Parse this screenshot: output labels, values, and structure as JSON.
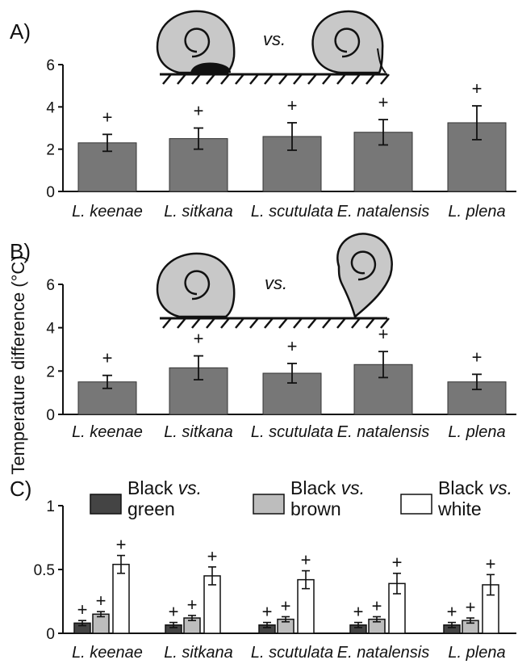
{
  "ylabel": "Temperature difference (°C)",
  "categories": [
    "L. keenae",
    "L. sitkana",
    "L. scutulata",
    "E. natalensis",
    "L. plena"
  ],
  "illustration_label": "vs.",
  "sig_marker": "+",
  "colors": {
    "bar_dark": "#777777",
    "snail_shell": "#c8c8c8",
    "snail_foot": "#111111",
    "green": "#444444",
    "brown": "#bdbdbd",
    "white": "#ffffff"
  },
  "chart_data": [
    {
      "type": "bar",
      "panel_label": "A)",
      "categories": [
        "L. keenae",
        "L. sitkana",
        "L. scutulata",
        "E. natalensis",
        "L. plena"
      ],
      "values": [
        2.3,
        2.5,
        2.6,
        2.8,
        3.25
      ],
      "errors": [
        0.4,
        0.5,
        0.65,
        0.6,
        0.8
      ],
      "significant": [
        true,
        true,
        true,
        true,
        true
      ],
      "ylim": [
        0,
        6
      ],
      "yticks": [
        "0",
        "2",
        "4",
        "6"
      ],
      "xlabel": "",
      "ylabel": ""
    },
    {
      "type": "bar",
      "panel_label": "B)",
      "categories": [
        "L. keenae",
        "L. sitkana",
        "L. scutulata",
        "E. natalensis",
        "L. plena"
      ],
      "values": [
        1.5,
        2.15,
        1.9,
        2.3,
        1.5
      ],
      "errors": [
        0.3,
        0.55,
        0.45,
        0.6,
        0.35
      ],
      "significant": [
        true,
        true,
        true,
        true,
        true
      ],
      "ylim": [
        0,
        6
      ],
      "yticks": [
        "0",
        "2",
        "4",
        "6"
      ],
      "xlabel": "",
      "ylabel": ""
    },
    {
      "type": "bar",
      "panel_label": "C)",
      "categories": [
        "L. keenae",
        "L. sitkana",
        "L. scutulata",
        "E. natalensis",
        "L. plena"
      ],
      "series": [
        {
          "name": "Black vs. green",
          "legend": [
            "Black ",
            "vs.",
            "green"
          ],
          "color": "#444444",
          "values": [
            0.08,
            0.065,
            0.065,
            0.065,
            0.065
          ],
          "errors": [
            0.02,
            0.02,
            0.02,
            0.02,
            0.02
          ]
        },
        {
          "name": "Black vs. brown",
          "legend": [
            "Black ",
            "vs.",
            "brown"
          ],
          "color": "#bdbdbd",
          "values": [
            0.15,
            0.12,
            0.11,
            0.11,
            0.1
          ],
          "errors": [
            0.02,
            0.02,
            0.02,
            0.02,
            0.02
          ]
        },
        {
          "name": "Black vs. white",
          "legend": [
            "Black ",
            "vs.",
            "white"
          ],
          "color": "#ffffff",
          "values": [
            0.54,
            0.45,
            0.42,
            0.39,
            0.38
          ],
          "errors": [
            0.07,
            0.07,
            0.07,
            0.08,
            0.08
          ]
        }
      ],
      "ylim": [
        0,
        1
      ],
      "yticks": [
        "0",
        "0.5",
        "1"
      ],
      "xlabel": "",
      "ylabel": ""
    }
  ]
}
